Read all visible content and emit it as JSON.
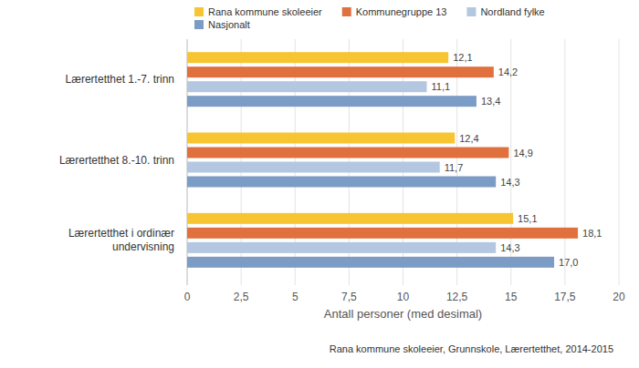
{
  "chart_data": {
    "type": "bar",
    "orientation": "horizontal",
    "categories": [
      "Lærertetthet 1.-7. trinn",
      "Lærertetthet 8.-10. trinn",
      "Lærertetthet i ordinær undervisning"
    ],
    "series": [
      {
        "name": "Rana kommune skoleeier",
        "color": "#f7c531",
        "values": [
          12.1,
          12.4,
          15.1
        ],
        "value_labels": [
          "12,1",
          "12,4",
          "15,1"
        ]
      },
      {
        "name": "Kommunegruppe 13",
        "color": "#e0713f",
        "values": [
          14.2,
          14.9,
          18.1
        ],
        "value_labels": [
          "14,2",
          "14,9",
          "18,1"
        ]
      },
      {
        "name": "Nordland fylke",
        "color": "#b3c7e0",
        "values": [
          11.1,
          11.7,
          14.3
        ],
        "value_labels": [
          "11,1",
          "11,7",
          "14,3"
        ]
      },
      {
        "name": "Nasjonalt",
        "color": "#7b9cc5",
        "values": [
          13.4,
          14.3,
          17.0
        ],
        "value_labels": [
          "13,4",
          "14,3",
          "17,0"
        ]
      }
    ],
    "x_label": "Antall personer (med desimal)",
    "annotations": [
      "Rana kommune skoleeier, Grunnskole, Lærertetthet, 2014-2015"
    ],
    "xlim": [
      0,
      20
    ],
    "xticks": [
      0,
      {
        "value": 2.5,
        "label": "2,5"
      },
      5,
      {
        "value": 7.5,
        "label": "7,5"
      },
      10,
      {
        "value": 12.5,
        "label": "12,5"
      },
      15,
      {
        "value": 17.5,
        "label": "17,5"
      },
      20
    ],
    "grid": true,
    "legend": "top",
    "data_labels": true
  }
}
